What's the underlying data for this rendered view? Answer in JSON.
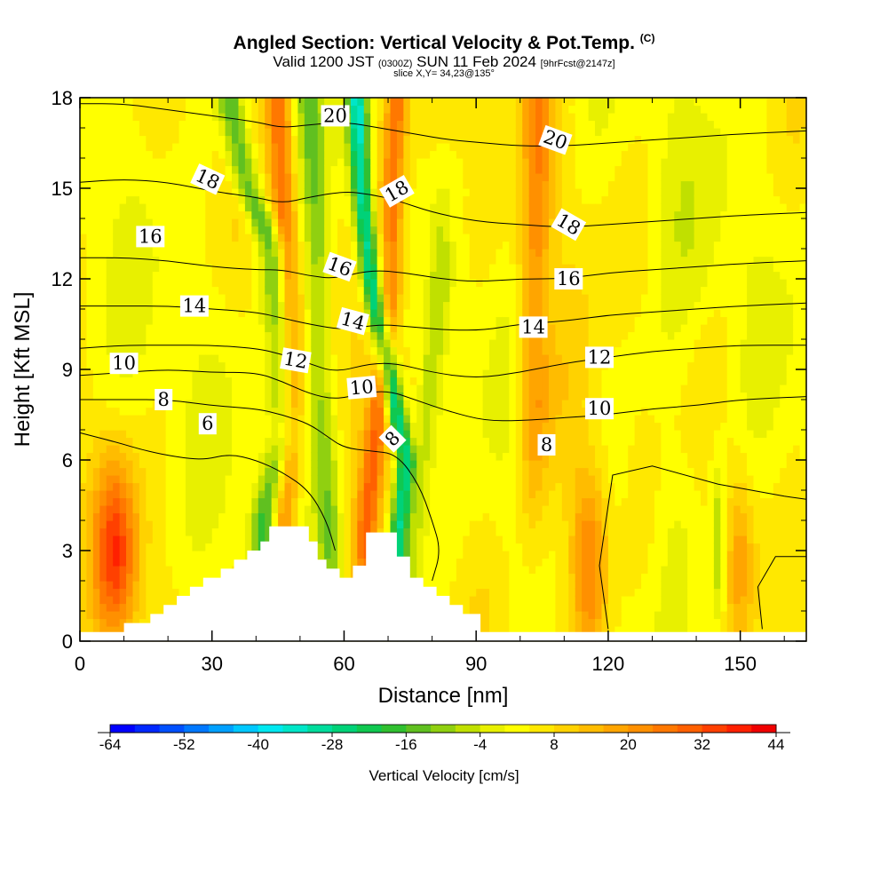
{
  "title": {
    "line1_main": "Angled Section: Vertical Velocity & Pot.Temp.",
    "line1_tag": "(C)",
    "line2_a": "Valid 1200 JST",
    "line2_b": "(0300Z)",
    "line2_c": "SUN 11 Feb 2024",
    "line2_d": "[9hrFcst@2147z]",
    "line3": "slice X,Y= 34,23@135°"
  },
  "chart_data": {
    "type": "heatmap",
    "xlabel": "Distance [nm]",
    "ylabel": "Height [Kft MSL]",
    "xlim": [
      0,
      165
    ],
    "ylim": [
      0,
      18
    ],
    "xticks": [
      0,
      30,
      60,
      90,
      120,
      150
    ],
    "yticks": [
      0,
      3,
      6,
      9,
      12,
      15,
      18
    ],
    "colorbar": {
      "label": "Vertical Velocity [cm/s]",
      "ticks": [
        -64,
        -52,
        -40,
        -28,
        -16,
        -4,
        8,
        20,
        32,
        44
      ],
      "min": -64,
      "max": 44,
      "step": 4,
      "colors": [
        "#0000ff",
        "#0028ff",
        "#0050ff",
        "#0078ff",
        "#00a0ff",
        "#00c8ff",
        "#00e8f0",
        "#00e6c8",
        "#00dc9c",
        "#00d278",
        "#10c850",
        "#30c030",
        "#60c020",
        "#90d010",
        "#c0e000",
        "#e8f000",
        "#ffff00",
        "#ffe800",
        "#ffd200",
        "#ffbc00",
        "#ffa500",
        "#ff9000",
        "#ff7800",
        "#ff6000",
        "#ff4000",
        "#ff2000",
        "#f00000",
        "#d80020",
        "#c00040",
        "#a80060",
        "#900080",
        "#7a0098",
        "#60009a"
      ]
    },
    "terrain": [
      [
        10,
        0.6
      ],
      [
        16,
        0.6
      ],
      [
        16,
        0.9
      ],
      [
        19,
        0.9
      ],
      [
        19,
        1.2
      ],
      [
        22,
        1.2
      ],
      [
        22,
        1.5
      ],
      [
        25,
        1.5
      ],
      [
        25,
        1.8
      ],
      [
        28,
        1.8
      ],
      [
        28,
        2.1
      ],
      [
        32,
        2.1
      ],
      [
        32,
        2.4
      ],
      [
        35,
        2.4
      ],
      [
        35,
        2.7
      ],
      [
        38,
        2.7
      ],
      [
        38,
        3.0
      ],
      [
        41,
        3.0
      ],
      [
        41,
        3.3
      ],
      [
        43,
        3.3
      ],
      [
        43,
        3.8
      ],
      [
        52,
        3.8
      ],
      [
        52,
        3.3
      ],
      [
        54,
        3.3
      ],
      [
        54,
        2.7
      ],
      [
        56,
        2.7
      ],
      [
        56,
        2.4
      ],
      [
        59,
        2.4
      ],
      [
        59,
        2.1
      ],
      [
        62,
        2.1
      ],
      [
        62,
        2.5
      ],
      [
        65,
        2.5
      ],
      [
        65,
        3.6
      ],
      [
        72,
        3.6
      ],
      [
        72,
        2.8
      ],
      [
        75,
        2.8
      ],
      [
        75,
        2.1
      ],
      [
        78,
        2.1
      ],
      [
        78,
        1.8
      ],
      [
        81,
        1.8
      ],
      [
        81,
        1.5
      ],
      [
        84,
        1.5
      ],
      [
        84,
        1.2
      ],
      [
        87,
        1.2
      ],
      [
        87,
        0.9
      ],
      [
        91,
        0.9
      ],
      [
        91,
        0.3
      ],
      [
        165,
        0.3
      ]
    ],
    "updrafts": [
      {
        "path": [
          [
            8,
            3.0
          ]
        ],
        "sx": 3.5,
        "sy": 2.2,
        "amp": 30
      },
      {
        "path": [
          [
            116,
            2.5
          ]
        ],
        "sx": 3.0,
        "sy": 2.5,
        "amp": 22
      },
      {
        "path": [
          [
            150,
            2.8
          ]
        ],
        "sx": 2.2,
        "sy": 2.0,
        "amp": 12
      },
      {
        "path": [
          [
            113,
            3.8
          ],
          [
            110,
            7.5
          ]
        ],
        "sx": 4.0,
        "sy": 3.0,
        "amp": 6
      },
      {
        "path": [
          [
            46,
            4
          ],
          [
            48,
            8
          ],
          [
            47,
            12
          ],
          [
            46,
            15
          ],
          [
            45,
            18
          ]
        ],
        "sx": 2.0,
        "sy": 2.5,
        "amp": 24
      },
      {
        "path": [
          [
            65,
            3.6
          ],
          [
            68,
            8
          ],
          [
            71,
            12
          ],
          [
            71,
            15
          ],
          [
            72,
            18
          ]
        ],
        "sx": 1.8,
        "sy": 2.0,
        "amp": 22
      },
      {
        "path": [
          [
            103,
            8
          ],
          [
            103,
            12
          ],
          [
            104,
            15
          ],
          [
            104,
            18
          ]
        ],
        "sx": 2.5,
        "sy": 3.0,
        "amp": 18
      },
      {
        "path": [
          [
            80,
            15
          ],
          [
            83,
            18
          ]
        ],
        "sx": 4.0,
        "sy": 3.0,
        "amp": 6
      },
      {
        "path": [
          [
            62,
            4
          ],
          [
            64,
            9
          ],
          [
            66,
            15
          ]
        ],
        "sx": 3.0,
        "sy": 3.0,
        "amp": 6
      }
    ],
    "downdrafts": [
      {
        "path": [
          [
            42,
            4
          ],
          [
            47,
            7
          ],
          [
            46,
            10
          ],
          [
            44,
            13
          ],
          [
            38,
            15
          ],
          [
            34,
            18
          ]
        ],
        "sx": 2.2,
        "sy": 2.5,
        "amp": -22
      },
      {
        "path": [
          [
            57,
            3
          ],
          [
            55,
            7
          ],
          [
            54,
            10
          ],
          [
            54,
            13
          ],
          [
            53,
            16
          ],
          [
            52,
            18
          ]
        ],
        "sx": 2.2,
        "sy": 2.5,
        "amp": -16
      },
      {
        "path": [
          [
            72,
            3
          ],
          [
            74,
            6
          ],
          [
            70,
            9
          ],
          [
            66,
            12
          ],
          [
            64,
            15
          ],
          [
            63,
            18
          ]
        ],
        "sx": 1.6,
        "sy": 1.5,
        "amp": -36
      },
      {
        "path": [
          [
            76,
            3
          ],
          [
            79,
            8
          ],
          [
            82,
            12
          ]
        ],
        "sx": 1.8,
        "sy": 2.0,
        "amp": -10
      },
      {
        "path": [
          [
            145,
            3
          ]
        ],
        "sx": 1.2,
        "sy": 2.0,
        "amp": -14
      },
      {
        "path": [
          [
            135,
            4
          ]
        ],
        "sx": 4.0,
        "sy": 2.0,
        "amp": -4
      },
      {
        "path": [
          [
            130,
            10
          ],
          [
            140,
            12
          ]
        ],
        "sx": 6,
        "sy": 3,
        "amp": -3
      }
    ],
    "contours": [
      {
        "value": 6,
        "points": [
          [
            0,
            6.9
          ],
          [
            8,
            6.6
          ],
          [
            15,
            6.3
          ],
          [
            22,
            6.1
          ],
          [
            28,
            6.0
          ],
          [
            34,
            6.2
          ],
          [
            40,
            6.0
          ],
          [
            46,
            5.6
          ],
          [
            52,
            5.0
          ],
          [
            56,
            4.0
          ],
          [
            58,
            3.0
          ]
        ]
      },
      {
        "value": 8,
        "points": [
          [
            0,
            8.0
          ],
          [
            10,
            8.0
          ],
          [
            20,
            8.0
          ],
          [
            30,
            7.8
          ],
          [
            40,
            7.7
          ],
          [
            46,
            7.5
          ],
          [
            52,
            7.2
          ],
          [
            56,
            6.8
          ],
          [
            60,
            6.4
          ],
          [
            66,
            6.3
          ],
          [
            72,
            6.2
          ],
          [
            77,
            5.2
          ],
          [
            80,
            4.0
          ],
          [
            82,
            3.0
          ],
          [
            80,
            2.0
          ]
        ]
      },
      {
        "value": 10,
        "points": [
          [
            0,
            8.8
          ],
          [
            10,
            8.9
          ],
          [
            20,
            9.0
          ],
          [
            30,
            8.9
          ],
          [
            40,
            8.9
          ],
          [
            46,
            8.6
          ],
          [
            52,
            8.2
          ],
          [
            58,
            8.0
          ],
          [
            64,
            8.2
          ],
          [
            70,
            8.3
          ],
          [
            76,
            8.0
          ],
          [
            84,
            7.6
          ],
          [
            92,
            7.3
          ],
          [
            100,
            7.3
          ],
          [
            110,
            7.4
          ],
          [
            120,
            7.5
          ],
          [
            130,
            7.7
          ],
          [
            140,
            7.8
          ],
          [
            150,
            8.0
          ],
          [
            165,
            8.1
          ]
        ]
      },
      {
        "value": 12,
        "points": [
          [
            0,
            9.7
          ],
          [
            10,
            9.8
          ],
          [
            20,
            9.8
          ],
          [
            30,
            9.8
          ],
          [
            40,
            9.7
          ],
          [
            46,
            9.5
          ],
          [
            52,
            9.2
          ],
          [
            58,
            8.9
          ],
          [
            66,
            9.2
          ],
          [
            72,
            9.2
          ],
          [
            80,
            8.9
          ],
          [
            90,
            8.7
          ],
          [
            100,
            8.9
          ],
          [
            110,
            9.2
          ],
          [
            120,
            9.4
          ],
          [
            130,
            9.6
          ],
          [
            140,
            9.7
          ],
          [
            150,
            9.8
          ],
          [
            165,
            9.8
          ]
        ]
      },
      {
        "value": 14,
        "points": [
          [
            0,
            11.1
          ],
          [
            10,
            11.1
          ],
          [
            20,
            11.1
          ],
          [
            30,
            11.0
          ],
          [
            40,
            10.9
          ],
          [
            46,
            10.7
          ],
          [
            52,
            10.5
          ],
          [
            60,
            10.3
          ],
          [
            68,
            10.5
          ],
          [
            76,
            10.4
          ],
          [
            84,
            10.3
          ],
          [
            92,
            10.3
          ],
          [
            100,
            10.5
          ],
          [
            110,
            10.6
          ],
          [
            120,
            10.8
          ],
          [
            130,
            10.9
          ],
          [
            140,
            11.0
          ],
          [
            150,
            11.1
          ],
          [
            165,
            11.2
          ]
        ]
      },
      {
        "value": 16,
        "points": [
          [
            0,
            12.7
          ],
          [
            10,
            12.7
          ],
          [
            20,
            12.6
          ],
          [
            30,
            12.4
          ],
          [
            40,
            12.3
          ],
          [
            46,
            12.3
          ],
          [
            52,
            12.1
          ],
          [
            58,
            12.0
          ],
          [
            66,
            12.3
          ],
          [
            74,
            12.2
          ],
          [
            82,
            12.0
          ],
          [
            90,
            11.9
          ],
          [
            100,
            12.0
          ],
          [
            110,
            12.0
          ],
          [
            120,
            12.2
          ],
          [
            130,
            12.3
          ],
          [
            140,
            12.4
          ],
          [
            150,
            12.5
          ],
          [
            165,
            12.6
          ]
        ]
      },
      {
        "value": 18,
        "points": [
          [
            0,
            15.2
          ],
          [
            10,
            15.3
          ],
          [
            20,
            15.2
          ],
          [
            30,
            14.9
          ],
          [
            40,
            14.7
          ],
          [
            46,
            14.5
          ],
          [
            52,
            14.7
          ],
          [
            60,
            14.9
          ],
          [
            66,
            14.8
          ],
          [
            72,
            14.6
          ],
          [
            80,
            14.2
          ],
          [
            90,
            13.9
          ],
          [
            100,
            13.8
          ],
          [
            110,
            13.7
          ],
          [
            120,
            13.8
          ],
          [
            130,
            13.9
          ],
          [
            140,
            14.0
          ],
          [
            150,
            14.1
          ],
          [
            165,
            14.2
          ]
        ]
      },
      {
        "value": 20,
        "points": [
          [
            0,
            17.8
          ],
          [
            10,
            17.8
          ],
          [
            20,
            17.6
          ],
          [
            30,
            17.4
          ],
          [
            40,
            17.2
          ],
          [
            46,
            17.0
          ],
          [
            52,
            17.1
          ],
          [
            60,
            17.2
          ],
          [
            68,
            17.0
          ],
          [
            76,
            16.8
          ],
          [
            84,
            16.6
          ],
          [
            92,
            16.5
          ],
          [
            100,
            16.4
          ],
          [
            110,
            16.4
          ],
          [
            120,
            16.5
          ],
          [
            130,
            16.6
          ],
          [
            140,
            16.7
          ],
          [
            150,
            16.8
          ],
          [
            165,
            16.9
          ]
        ]
      }
    ],
    "contour_labels": [
      {
        "text": "20",
        "x": 58,
        "y": 17.4,
        "rot": 0
      },
      {
        "text": "20",
        "x": 108,
        "y": 16.6,
        "rot": 20
      },
      {
        "text": "18",
        "x": 29,
        "y": 15.3,
        "rot": 25
      },
      {
        "text": "18",
        "x": 72,
        "y": 14.9,
        "rot": -30
      },
      {
        "text": "18",
        "x": 111,
        "y": 13.8,
        "rot": 30
      },
      {
        "text": "16",
        "x": 16,
        "y": 13.4,
        "rot": 0
      },
      {
        "text": "16",
        "x": 59,
        "y": 12.4,
        "rot": 20
      },
      {
        "text": "16",
        "x": 111,
        "y": 12.0,
        "rot": 0
      },
      {
        "text": "14",
        "x": 26,
        "y": 11.1,
        "rot": 0
      },
      {
        "text": "14",
        "x": 62,
        "y": 10.6,
        "rot": 15
      },
      {
        "text": "14",
        "x": 103,
        "y": 10.4,
        "rot": 0
      },
      {
        "text": "12",
        "x": 49,
        "y": 9.3,
        "rot": 10
      },
      {
        "text": "12",
        "x": 118,
        "y": 9.4,
        "rot": 0
      },
      {
        "text": "10",
        "x": 10,
        "y": 9.2,
        "rot": 0
      },
      {
        "text": "10",
        "x": 64,
        "y": 8.4,
        "rot": -5
      },
      {
        "text": "10",
        "x": 118,
        "y": 7.7,
        "rot": 0
      },
      {
        "text": "8",
        "x": 19,
        "y": 8.0,
        "rot": 0
      },
      {
        "text": "8",
        "x": 71,
        "y": 6.7,
        "rot": -45
      },
      {
        "text": "8",
        "x": 106,
        "y": 6.5,
        "rot": 0
      },
      {
        "text": "6",
        "x": 29,
        "y": 7.2,
        "rot": 0
      }
    ]
  }
}
